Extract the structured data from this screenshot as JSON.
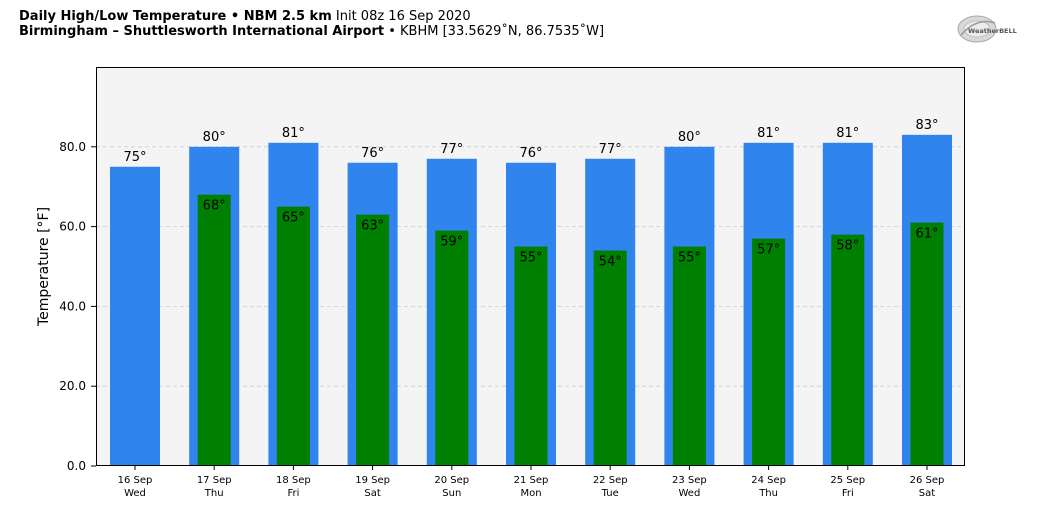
{
  "header": {
    "title_bold": "Daily High/Low Temperature • NBM 2.5 km",
    "title_init": "Init 08z 16 Sep 2020",
    "location_bold": "Birmingham – Shuttlesworth International Airport",
    "location_rest": "• KBHM [33.5629˚N, 86.7535˚W]",
    "logo_text": "WeatherBELL"
  },
  "colors": {
    "high_bar": "#2f84ee",
    "low_bar": "#008000",
    "plot_bg": "#f4f4f4",
    "grid": "#cccccc"
  },
  "chart_data": {
    "type": "bar",
    "categories": [
      "16 Sep",
      "17 Sep",
      "18 Sep",
      "19 Sep",
      "20 Sep",
      "21 Sep",
      "22 Sep",
      "23 Sep",
      "24 Sep",
      "25 Sep",
      "26 Sep"
    ],
    "weekdays": [
      "Wed",
      "Thu",
      "Fri",
      "Sat",
      "Sun",
      "Mon",
      "Tue",
      "Wed",
      "Thu",
      "Fri",
      "Sat"
    ],
    "series": [
      {
        "name": "",
        "values": [
          75,
          80,
          81,
          76,
          77,
          76,
          77,
          80,
          81,
          81,
          83
        ]
      },
      {
        "name": "",
        "values": [
          null,
          68,
          65,
          63,
          59,
          55,
          54,
          55,
          57,
          58,
          61
        ]
      }
    ],
    "high_labels": [
      "75°",
      "80°",
      "81°",
      "76°",
      "77°",
      "76°",
      "77°",
      "80°",
      "81°",
      "81°",
      "83°"
    ],
    "low_labels": [
      "",
      "68°",
      "65°",
      "63°",
      "59°",
      "55°",
      "54°",
      "55°",
      "57°",
      "58°",
      "61°"
    ],
    "title": "",
    "xlabel": "",
    "ylabel": "Temperature [°F]",
    "ylim": [
      0,
      100
    ],
    "yticks": [
      0,
      20,
      40,
      60,
      80
    ],
    "ytick_labels": [
      "0.0",
      "20.0",
      "40.0",
      "60.0",
      "80.0"
    ],
    "grid": true,
    "legend": "none"
  }
}
